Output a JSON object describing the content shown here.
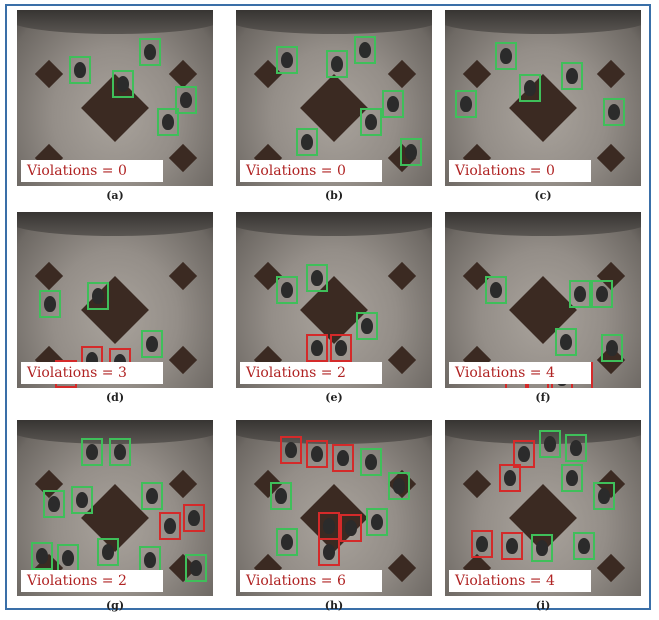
{
  "panels": [
    {
      "violations_label": "Violations = 0",
      "caption": "(a)",
      "people": [
        [
          52,
          46,
          "g"
        ],
        [
          95,
          60,
          "g"
        ],
        [
          122,
          28,
          "g"
        ],
        [
          158,
          76,
          "g"
        ],
        [
          140,
          98,
          "g"
        ]
      ],
      "watermark": true
    },
    {
      "violations_label": "Violations = 0",
      "caption": "(b)",
      "people": [
        [
          40,
          36,
          "g"
        ],
        [
          90,
          40,
          "g"
        ],
        [
          118,
          26,
          "g"
        ],
        [
          146,
          80,
          "g"
        ],
        [
          124,
          98,
          "g"
        ],
        [
          60,
          118,
          "g"
        ],
        [
          164,
          128,
          "g"
        ]
      ],
      "watermark": false
    },
    {
      "violations_label": "Violations = 0",
      "caption": "(c)",
      "people": [
        [
          50,
          32,
          "g"
        ],
        [
          74,
          64,
          "g"
        ],
        [
          116,
          52,
          "g"
        ],
        [
          10,
          80,
          "g"
        ],
        [
          158,
          88,
          "g"
        ]
      ],
      "watermark": false
    },
    {
      "violations_label": "Violations = 3",
      "caption": "(d)",
      "people": [
        [
          22,
          78,
          "g"
        ],
        [
          70,
          70,
          "g"
        ],
        [
          124,
          118,
          "g"
        ],
        [
          64,
          134,
          "r"
        ],
        [
          92,
          136,
          "r"
        ],
        [
          38,
          148,
          "r"
        ]
      ],
      "watermark": false
    },
    {
      "violations_label": "Violations = 2",
      "caption": "(e)",
      "people": [
        [
          40,
          64,
          "g"
        ],
        [
          70,
          52,
          "g"
        ],
        [
          120,
          100,
          "g"
        ],
        [
          70,
          122,
          "r"
        ],
        [
          94,
          122,
          "r"
        ]
      ],
      "watermark": false
    },
    {
      "violations_label": "Violations = 4",
      "caption": "(f)",
      "people": [
        [
          40,
          64,
          "g"
        ],
        [
          124,
          68,
          "g"
        ],
        [
          146,
          68,
          "g"
        ],
        [
          110,
          116,
          "g"
        ],
        [
          156,
          122,
          "g"
        ],
        [
          60,
          150,
          "r"
        ],
        [
          82,
          150,
          "r"
        ],
        [
          106,
          152,
          "r"
        ],
        [
          126,
          150,
          "r"
        ]
      ],
      "watermark": false
    },
    {
      "violations_label": "Violations = 2",
      "caption": "(g)",
      "people": [
        [
          64,
          18,
          "g"
        ],
        [
          92,
          18,
          "g"
        ],
        [
          26,
          70,
          "g"
        ],
        [
          54,
          66,
          "g"
        ],
        [
          124,
          62,
          "g"
        ],
        [
          142,
          92,
          "r"
        ],
        [
          166,
          84,
          "r"
        ],
        [
          14,
          122,
          "g"
        ],
        [
          40,
          124,
          "g"
        ],
        [
          80,
          118,
          "g"
        ],
        [
          122,
          126,
          "g"
        ],
        [
          168,
          134,
          "g"
        ]
      ],
      "watermark": false
    },
    {
      "violations_label": "Violations = 6",
      "caption": "(h)",
      "people": [
        [
          44,
          16,
          "r"
        ],
        [
          70,
          20,
          "r"
        ],
        [
          96,
          24,
          "r"
        ],
        [
          124,
          28,
          "g"
        ],
        [
          152,
          52,
          "g"
        ],
        [
          34,
          62,
          "g"
        ],
        [
          82,
          92,
          "r"
        ],
        [
          104,
          94,
          "r"
        ],
        [
          82,
          118,
          "r"
        ],
        [
          40,
          108,
          "g"
        ],
        [
          130,
          88,
          "g"
        ]
      ],
      "watermark": false
    },
    {
      "violations_label": "Violations = 4",
      "caption": "(i)",
      "people": [
        [
          68,
          20,
          "r"
        ],
        [
          94,
          10,
          "g"
        ],
        [
          120,
          14,
          "g"
        ],
        [
          54,
          44,
          "r"
        ],
        [
          116,
          44,
          "g"
        ],
        [
          148,
          62,
          "g"
        ],
        [
          26,
          110,
          "r"
        ],
        [
          56,
          112,
          "r"
        ],
        [
          86,
          114,
          "g"
        ],
        [
          128,
          112,
          "g"
        ]
      ],
      "watermark": false
    }
  ]
}
